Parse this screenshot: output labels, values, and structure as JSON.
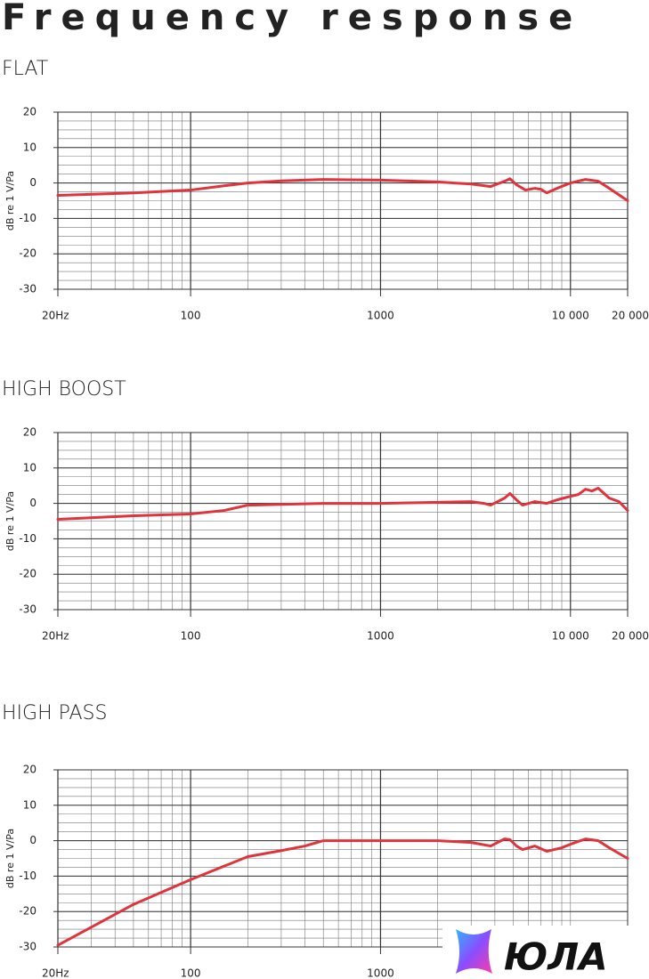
{
  "title": "Frequency response",
  "watermark": "ЮЛА",
  "chart_data": [
    {
      "type": "line",
      "title": "FLAT",
      "y_label": "dB re 1 V/Pa",
      "x_scale": "log",
      "grid": true,
      "xlim": [
        20,
        20000
      ],
      "ylim": [
        -30,
        20
      ],
      "xticks": [
        {
          "value": 20,
          "label": "20Hz"
        },
        100,
        1000,
        {
          "value": 10000,
          "label": "10 000"
        },
        {
          "value": 20000,
          "label": "20 000"
        }
      ],
      "yticks": [
        -30,
        -20,
        -10,
        0,
        10,
        20
      ],
      "x": [
        20,
        50,
        100,
        150,
        200,
        300,
        500,
        1000,
        2000,
        3000,
        3800,
        4500,
        4800,
        5200,
        5800,
        6500,
        7000,
        7500,
        8500,
        10000,
        12000,
        14000,
        16000,
        20000
      ],
      "series": [
        {
          "name": "FLAT",
          "color": "#e0343d",
          "values": [
            -3.5,
            -2.8,
            -2,
            -0.8,
            0,
            0.6,
            1,
            0.8,
            0.3,
            -0.3,
            -1,
            0.5,
            1.2,
            -0.5,
            -2,
            -1.5,
            -1.8,
            -2.8,
            -1.5,
            0,
            1,
            0.5,
            -1.5,
            -5
          ]
        }
      ]
    },
    {
      "type": "line",
      "title": "HIGH BOOST",
      "y_label": "dB re 1 V/Pa",
      "x_scale": "log",
      "grid": true,
      "xlim": [
        20,
        20000
      ],
      "ylim": [
        -30,
        20
      ],
      "xticks": [
        {
          "value": 20,
          "label": "20Hz"
        },
        100,
        1000,
        {
          "value": 10000,
          "label": "10 000"
        },
        {
          "value": 20000,
          "label": "20 000"
        }
      ],
      "yticks": [
        -30,
        -20,
        -10,
        0,
        10,
        20
      ],
      "x": [
        20,
        50,
        100,
        150,
        200,
        500,
        1000,
        2000,
        3000,
        3500,
        3800,
        4500,
        4800,
        5200,
        5600,
        6500,
        7500,
        8500,
        10000,
        11000,
        12000,
        13000,
        14000,
        16000,
        18000,
        20000
      ],
      "series": [
        {
          "name": "HIGH BOOST",
          "color": "#e0343d",
          "values": [
            -4.5,
            -3.5,
            -3,
            -2,
            -0.5,
            0,
            0,
            0.3,
            0.5,
            0,
            -0.5,
            1.5,
            2.8,
            1,
            -0.5,
            0.5,
            0,
            1,
            2,
            2.5,
            4,
            3.5,
            4.3,
            1.5,
            0.5,
            -2
          ]
        }
      ]
    },
    {
      "type": "line",
      "title": "HIGH PASS",
      "y_label": "dB re 1 V/Pa",
      "x_scale": "log",
      "grid": true,
      "xlim": [
        20,
        20000
      ],
      "ylim": [
        -30,
        20
      ],
      "xticks": [
        {
          "value": 20,
          "label": "20Hz"
        },
        100,
        1000
      ],
      "yticks": [
        -30,
        -20,
        -10,
        0,
        10,
        20
      ],
      "x": [
        20,
        50,
        100,
        200,
        300,
        400,
        500,
        1000,
        2000,
        3000,
        3800,
        4500,
        4800,
        5200,
        5600,
        6500,
        7500,
        9000,
        10000,
        12000,
        14000,
        16000,
        20000
      ],
      "series": [
        {
          "name": "HIGH PASS",
          "color": "#e0343d",
          "values": [
            -29.5,
            -18,
            -11,
            -4.5,
            -2.8,
            -1.5,
            0,
            0,
            0,
            -0.5,
            -1.5,
            0.5,
            0.3,
            -1.5,
            -2.5,
            -1.5,
            -3,
            -2,
            -1,
            0.5,
            0,
            -2,
            -5
          ]
        }
      ]
    }
  ]
}
